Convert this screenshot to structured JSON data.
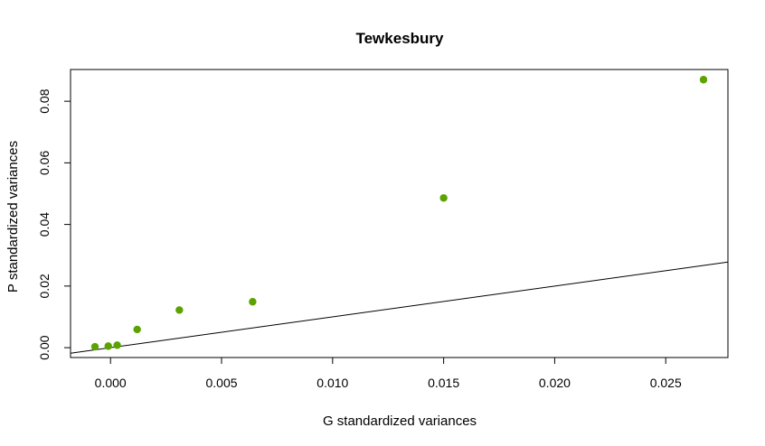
{
  "chart_data": {
    "type": "scatter",
    "title": "Tewkesbury",
    "xlabel": "G standardized variances",
    "ylabel": "P standardized variances",
    "xlim": [
      -0.0018,
      0.0278
    ],
    "ylim": [
      -0.0032,
      0.0903
    ],
    "x_ticks": [
      0.0,
      0.005,
      0.01,
      0.015,
      0.02,
      0.025
    ],
    "x_tick_labels": [
      "0.000",
      "0.005",
      "0.010",
      "0.015",
      "0.020",
      "0.025"
    ],
    "y_ticks": [
      0.0,
      0.02,
      0.04,
      0.06,
      0.08
    ],
    "y_tick_labels": [
      "0.00",
      "0.02",
      "0.04",
      "0.06",
      "0.08"
    ],
    "grid": false,
    "point_color": "#5ba300",
    "line_color": "#000000",
    "points": {
      "x": [
        -0.0007,
        -0.0001,
        0.0003,
        0.0012,
        0.0031,
        0.0064,
        0.015,
        0.0267
      ],
      "y": [
        0.0003,
        0.0005,
        0.0008,
        0.0059,
        0.0122,
        0.0149,
        0.0486,
        0.087
      ]
    },
    "reference_line": {
      "type": "identity",
      "intercept": 0,
      "slope": 1
    }
  }
}
